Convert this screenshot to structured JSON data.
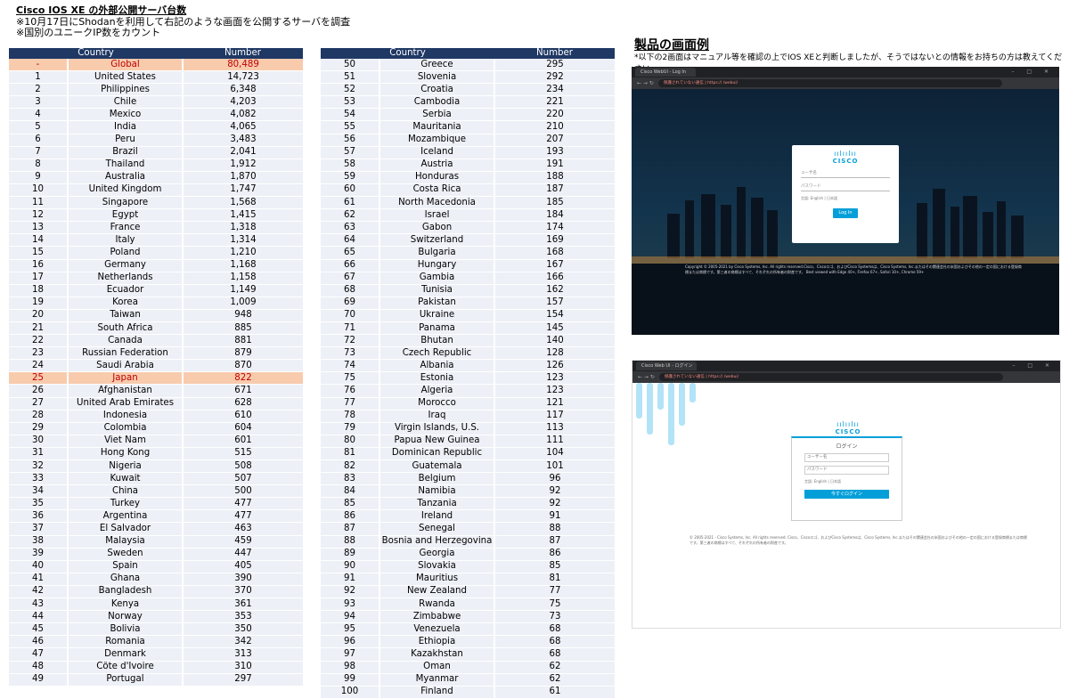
{
  "header": {
    "title": "Cisco IOS XE の外部公開サーバ台数",
    "note1": "※10月17日にShodanを利用して右記のような画面を公開するサーバを調査",
    "note2": "※国別のユニークIP数をカウント"
  },
  "table_headers": {
    "col1": "Country",
    "col2": "Number"
  },
  "table_left": [
    [
      "-",
      "Global",
      "80,489"
    ],
    [
      "1",
      "United States",
      "14,723"
    ],
    [
      "2",
      "Philippines",
      "6,348"
    ],
    [
      "3",
      "Chile",
      "4,203"
    ],
    [
      "4",
      "Mexico",
      "4,082"
    ],
    [
      "5",
      "India",
      "4,065"
    ],
    [
      "6",
      "Peru",
      "3,483"
    ],
    [
      "7",
      "Brazil",
      "2,041"
    ],
    [
      "8",
      "Thailand",
      "1,912"
    ],
    [
      "9",
      "Australia",
      "1,870"
    ],
    [
      "10",
      "United Kingdom",
      "1,747"
    ],
    [
      "11",
      "Singapore",
      "1,568"
    ],
    [
      "12",
      "Egypt",
      "1,415"
    ],
    [
      "13",
      "France",
      "1,318"
    ],
    [
      "14",
      "Italy",
      "1,314"
    ],
    [
      "15",
      "Poland",
      "1,210"
    ],
    [
      "16",
      "Germany",
      "1,168"
    ],
    [
      "17",
      "Netherlands",
      "1,158"
    ],
    [
      "18",
      "Ecuador",
      "1,149"
    ],
    [
      "19",
      "Korea",
      "1,009"
    ],
    [
      "20",
      "Taiwan",
      "948"
    ],
    [
      "21",
      "South Africa",
      "885"
    ],
    [
      "22",
      "Canada",
      "881"
    ],
    [
      "23",
      "Russian Federation",
      "879"
    ],
    [
      "24",
      "Saudi Arabia",
      "870"
    ],
    [
      "25",
      "Japan",
      "822"
    ],
    [
      "26",
      "Afghanistan",
      "671"
    ],
    [
      "27",
      "United Arab Emirates",
      "628"
    ],
    [
      "28",
      "Indonesia",
      "610"
    ],
    [
      "29",
      "Colombia",
      "604"
    ],
    [
      "30",
      "Viet Nam",
      "601"
    ],
    [
      "31",
      "Hong Kong",
      "515"
    ],
    [
      "32",
      "Nigeria",
      "508"
    ],
    [
      "33",
      "Kuwait",
      "507"
    ],
    [
      "34",
      "China",
      "500"
    ],
    [
      "35",
      "Turkey",
      "477"
    ],
    [
      "36",
      "Argentina",
      "477"
    ],
    [
      "37",
      "El Salvador",
      "463"
    ],
    [
      "38",
      "Malaysia",
      "459"
    ],
    [
      "39",
      "Sweden",
      "447"
    ],
    [
      "40",
      "Spain",
      "405"
    ],
    [
      "41",
      "Ghana",
      "390"
    ],
    [
      "42",
      "Bangladesh",
      "370"
    ],
    [
      "43",
      "Kenya",
      "361"
    ],
    [
      "44",
      "Norway",
      "353"
    ],
    [
      "45",
      "Bolivia",
      "350"
    ],
    [
      "46",
      "Romania",
      "342"
    ],
    [
      "47",
      "Denmark",
      "313"
    ],
    [
      "48",
      "Côte d'Ivoire",
      "310"
    ],
    [
      "49",
      "Portugal",
      "297"
    ]
  ],
  "table_right": [
    [
      "50",
      "Greece",
      "295"
    ],
    [
      "51",
      "Slovenia",
      "292"
    ],
    [
      "52",
      "Croatia",
      "234"
    ],
    [
      "53",
      "Cambodia",
      "221"
    ],
    [
      "54",
      "Serbia",
      "220"
    ],
    [
      "55",
      "Mauritania",
      "210"
    ],
    [
      "56",
      "Mozambique",
      "207"
    ],
    [
      "57",
      "Iceland",
      "193"
    ],
    [
      "58",
      "Austria",
      "191"
    ],
    [
      "59",
      "Honduras",
      "188"
    ],
    [
      "60",
      "Costa Rica",
      "187"
    ],
    [
      "61",
      "North Macedonia",
      "185"
    ],
    [
      "62",
      "Israel",
      "184"
    ],
    [
      "63",
      "Gabon",
      "174"
    ],
    [
      "64",
      "Switzerland",
      "169"
    ],
    [
      "65",
      "Bulgaria",
      "168"
    ],
    [
      "66",
      "Hungary",
      "167"
    ],
    [
      "67",
      "Gambia",
      "166"
    ],
    [
      "68",
      "Tunisia",
      "162"
    ],
    [
      "69",
      "Pakistan",
      "157"
    ],
    [
      "70",
      "Ukraine",
      "154"
    ],
    [
      "71",
      "Panama",
      "145"
    ],
    [
      "72",
      "Bhutan",
      "140"
    ],
    [
      "73",
      "Czech Republic",
      "128"
    ],
    [
      "74",
      "Albania",
      "126"
    ],
    [
      "75",
      "Estonia",
      "123"
    ],
    [
      "76",
      "Algeria",
      "123"
    ],
    [
      "77",
      "Morocco",
      "121"
    ],
    [
      "78",
      "Iraq",
      "117"
    ],
    [
      "79",
      "Virgin Islands, U.S.",
      "113"
    ],
    [
      "80",
      "Papua New Guinea",
      "111"
    ],
    [
      "81",
      "Dominican Republic",
      "104"
    ],
    [
      "82",
      "Guatemala",
      "101"
    ],
    [
      "83",
      "Belgium",
      "96"
    ],
    [
      "84",
      "Namibia",
      "92"
    ],
    [
      "85",
      "Tanzania",
      "92"
    ],
    [
      "86",
      "Ireland",
      "91"
    ],
    [
      "87",
      "Senegal",
      "88"
    ],
    [
      "88",
      "Bosnia and Herzegovina",
      "87"
    ],
    [
      "89",
      "Georgia",
      "86"
    ],
    [
      "90",
      "Slovakia",
      "85"
    ],
    [
      "91",
      "Mauritius",
      "81"
    ],
    [
      "92",
      "New Zealand",
      "77"
    ],
    [
      "93",
      "Rwanda",
      "75"
    ],
    [
      "94",
      "Zimbabwe",
      "73"
    ],
    [
      "95",
      "Venezuela",
      "68"
    ],
    [
      "96",
      "Ethiopia",
      "68"
    ],
    [
      "97",
      "Kazakhstan",
      "68"
    ],
    [
      "98",
      "Oman",
      "62"
    ],
    [
      "99",
      "Myanmar",
      "62"
    ],
    [
      "100",
      "Finland",
      "61"
    ]
  ],
  "highlight_rows": [
    "-",
    "25"
  ],
  "colors": {
    "header_bg": "#1f3864",
    "highlight_bg": "#f8cbad",
    "highlight_text": "#c00000",
    "row_bg": "#eef0f7",
    "cisco_blue": "#049fd9"
  },
  "examples": {
    "title": "製品の画面例",
    "note": "*以下の2画面はマニュアル等を確認の上でIOS XEと判断しましたが、そうではないとの情報をお持ちの方は教えてください。",
    "shot1": {
      "tab": "Cisco WebUI - Log In",
      "address": "保護されていない通信 | https://                 /webui/",
      "brand": "CISCO",
      "username_placeholder": "ユーザ名",
      "password_placeholder": "パスワード",
      "lang": "言語:  English | 日本語",
      "button": "Log In",
      "copyright": "Copyright © 2005-2021 by Cisco Systems, Inc. All rights reserved.Cisco、Ciscoロゴ、およびCisco Systemsは、Cisco Systems, Inc.またはその関連会社の米国およびその他の一定の国における登録商標または商標です。第三者の商標はすべて、それぞれの所有者の財産です。 Best viewed with Edge 40+, Firefox 67+, Safari 10+, Chrome 59+"
    },
    "shot2": {
      "tab": "Cisco Web UI - ログイン",
      "address": "保護されていない通信 | https://                 /webui/",
      "brand": "CISCO",
      "title": "ログイン",
      "username_placeholder": "ユーザー名",
      "password_placeholder": "パスワード",
      "lang": "言語:  English | 日本語",
      "button": "今すぐログイン",
      "copyright": "© 2005-2021 - Cisco Systems, Inc. All rights reserved. Cisco、Ciscoロゴ、およびCisco Systemsは、Cisco Systems, Inc.またはその関連会社の米国およびその他の一定の国における登録商標または商標です。第三者の商標はすべて、それぞれの所有者の財産です。"
    }
  }
}
